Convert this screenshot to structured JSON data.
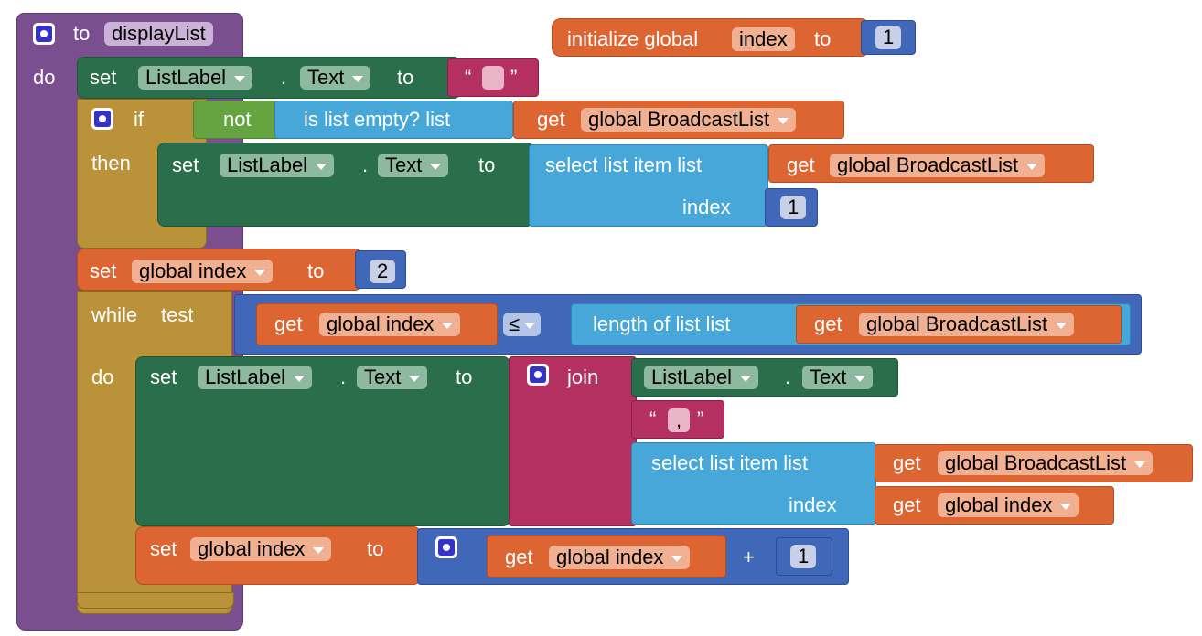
{
  "procedure": {
    "to_label": "to",
    "name": "displayList",
    "do_label": "do"
  },
  "global_init": {
    "label": "initialize global",
    "var": "index",
    "to_label": "to",
    "value": "1"
  },
  "set1": {
    "set": "set",
    "component": "ListLabel",
    "prop": "Text",
    "dot": ".",
    "to": "to",
    "quote_open": "“",
    "quote_close": "”",
    "text_value": ""
  },
  "if_block": {
    "if": "if",
    "then": "then",
    "not": "not",
    "is_empty": "is list empty?  list",
    "get": "get",
    "var": "global BroadcastList"
  },
  "then_set": {
    "set": "set",
    "component": "ListLabel",
    "prop": "Text",
    "dot": ".",
    "to": "to",
    "select": "select list item  list",
    "index": "index",
    "get": "get",
    "var": "global BroadcastList",
    "index_value": "1"
  },
  "set_index": {
    "set": "set",
    "var": "global index",
    "to": "to",
    "value": "2"
  },
  "while_block": {
    "while": "while",
    "test": "test",
    "do": "do",
    "get": "get",
    "var": "global index",
    "op": "≤",
    "length": "length of list  list",
    "list_var": "global BroadcastList"
  },
  "while_set": {
    "set": "set",
    "component": "ListLabel",
    "prop": "Text",
    "dot": ".",
    "to": "to",
    "join": "join",
    "join_component": "ListLabel",
    "join_prop": "Text",
    "join_dot": ".",
    "quote_open": "“",
    "quote_close": "”",
    "sep_value": ",",
    "select": "select list item  list",
    "index": "index",
    "get": "get",
    "list_var": "global BroadcastList",
    "index_var": "global index"
  },
  "increment": {
    "set": "set",
    "var": "global index",
    "to": "to",
    "get": "get",
    "plus": "+",
    "add_value": "1"
  }
}
